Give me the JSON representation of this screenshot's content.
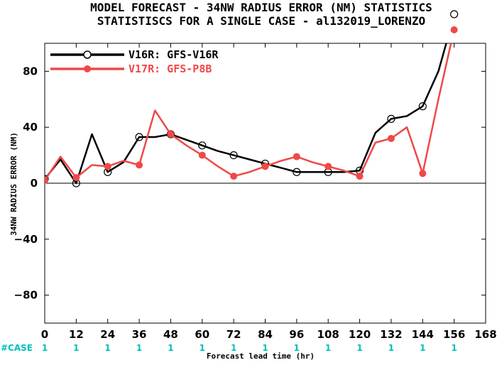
{
  "chart_data": {
    "type": "line",
    "title_line1": "MODEL FORECAST - 34NW RADIUS ERROR (NM) STATISTICS",
    "title_line2": "STATISTISCS FOR A SINGLE CASE - al132019_LORENZO",
    "xlabel": "Forecast lead time (hr)",
    "ylabel": "34NW RADIUS ERROR (NM)",
    "xlim": [
      0,
      168
    ],
    "ylim": [
      -100,
      100
    ],
    "x_ticks": [
      0,
      12,
      24,
      36,
      48,
      60,
      72,
      84,
      96,
      108,
      120,
      132,
      144,
      156,
      168
    ],
    "y_ticks": [
      80,
      40,
      0,
      -40,
      -80
    ],
    "y_tick_labels": [
      "80",
      "40",
      "0",
      "−40",
      "−80"
    ],
    "grid": false,
    "zero_line": true,
    "legend_position": "top-left",
    "case_label": "#CASE",
    "case_x": [
      0,
      12,
      24,
      36,
      48,
      60,
      72,
      84,
      96,
      108,
      120,
      132,
      144,
      156
    ],
    "case_counts": [
      "1",
      "1",
      "1",
      "1",
      "1",
      "1",
      "1",
      "1",
      "1",
      "1",
      "1",
      "1",
      "1",
      "1"
    ],
    "case_color": "#00c0c0",
    "series": [
      {
        "name": "V16R: GFS-V16R",
        "color": "#000000",
        "marker": "open-circle",
        "x": [
          0,
          6,
          12,
          18,
          24,
          30,
          36,
          42,
          48,
          54,
          60,
          66,
          72,
          78,
          84,
          90,
          96,
          102,
          108,
          114,
          120,
          126,
          132,
          138,
          144,
          150,
          156
        ],
        "y": [
          3,
          17,
          0,
          35,
          8,
          15,
          33,
          33,
          35,
          31,
          27,
          23,
          20,
          17,
          14,
          11,
          8,
          8,
          8,
          8,
          9,
          36,
          46,
          48,
          55,
          80,
          120
        ],
        "marked_x": [
          0,
          12,
          24,
          36,
          48,
          60,
          72,
          84,
          96,
          108,
          120,
          132,
          144
        ]
      },
      {
        "name": "V17R: GFS-P8B",
        "color": "#f04848",
        "marker": "filled-circle",
        "x": [
          0,
          6,
          12,
          18,
          24,
          30,
          36,
          42,
          48,
          54,
          60,
          66,
          72,
          78,
          84,
          90,
          96,
          102,
          108,
          114,
          120,
          126,
          132,
          138,
          144,
          150,
          156
        ],
        "y": [
          2,
          19,
          4,
          13,
          12,
          16,
          13,
          52,
          35,
          27,
          20,
          12,
          5,
          8,
          12,
          16,
          19,
          15,
          12,
          9,
          5,
          29,
          32,
          40,
          7,
          60,
          110
        ],
        "marked_x": [
          0,
          12,
          24,
          36,
          48,
          60,
          72,
          84,
          96,
          108,
          120,
          132,
          144
        ]
      }
    ],
    "offscale_markers": [
      {
        "series": 0,
        "x": 156,
        "y": 120
      },
      {
        "series": 1,
        "x": 156,
        "y": 110
      }
    ]
  }
}
